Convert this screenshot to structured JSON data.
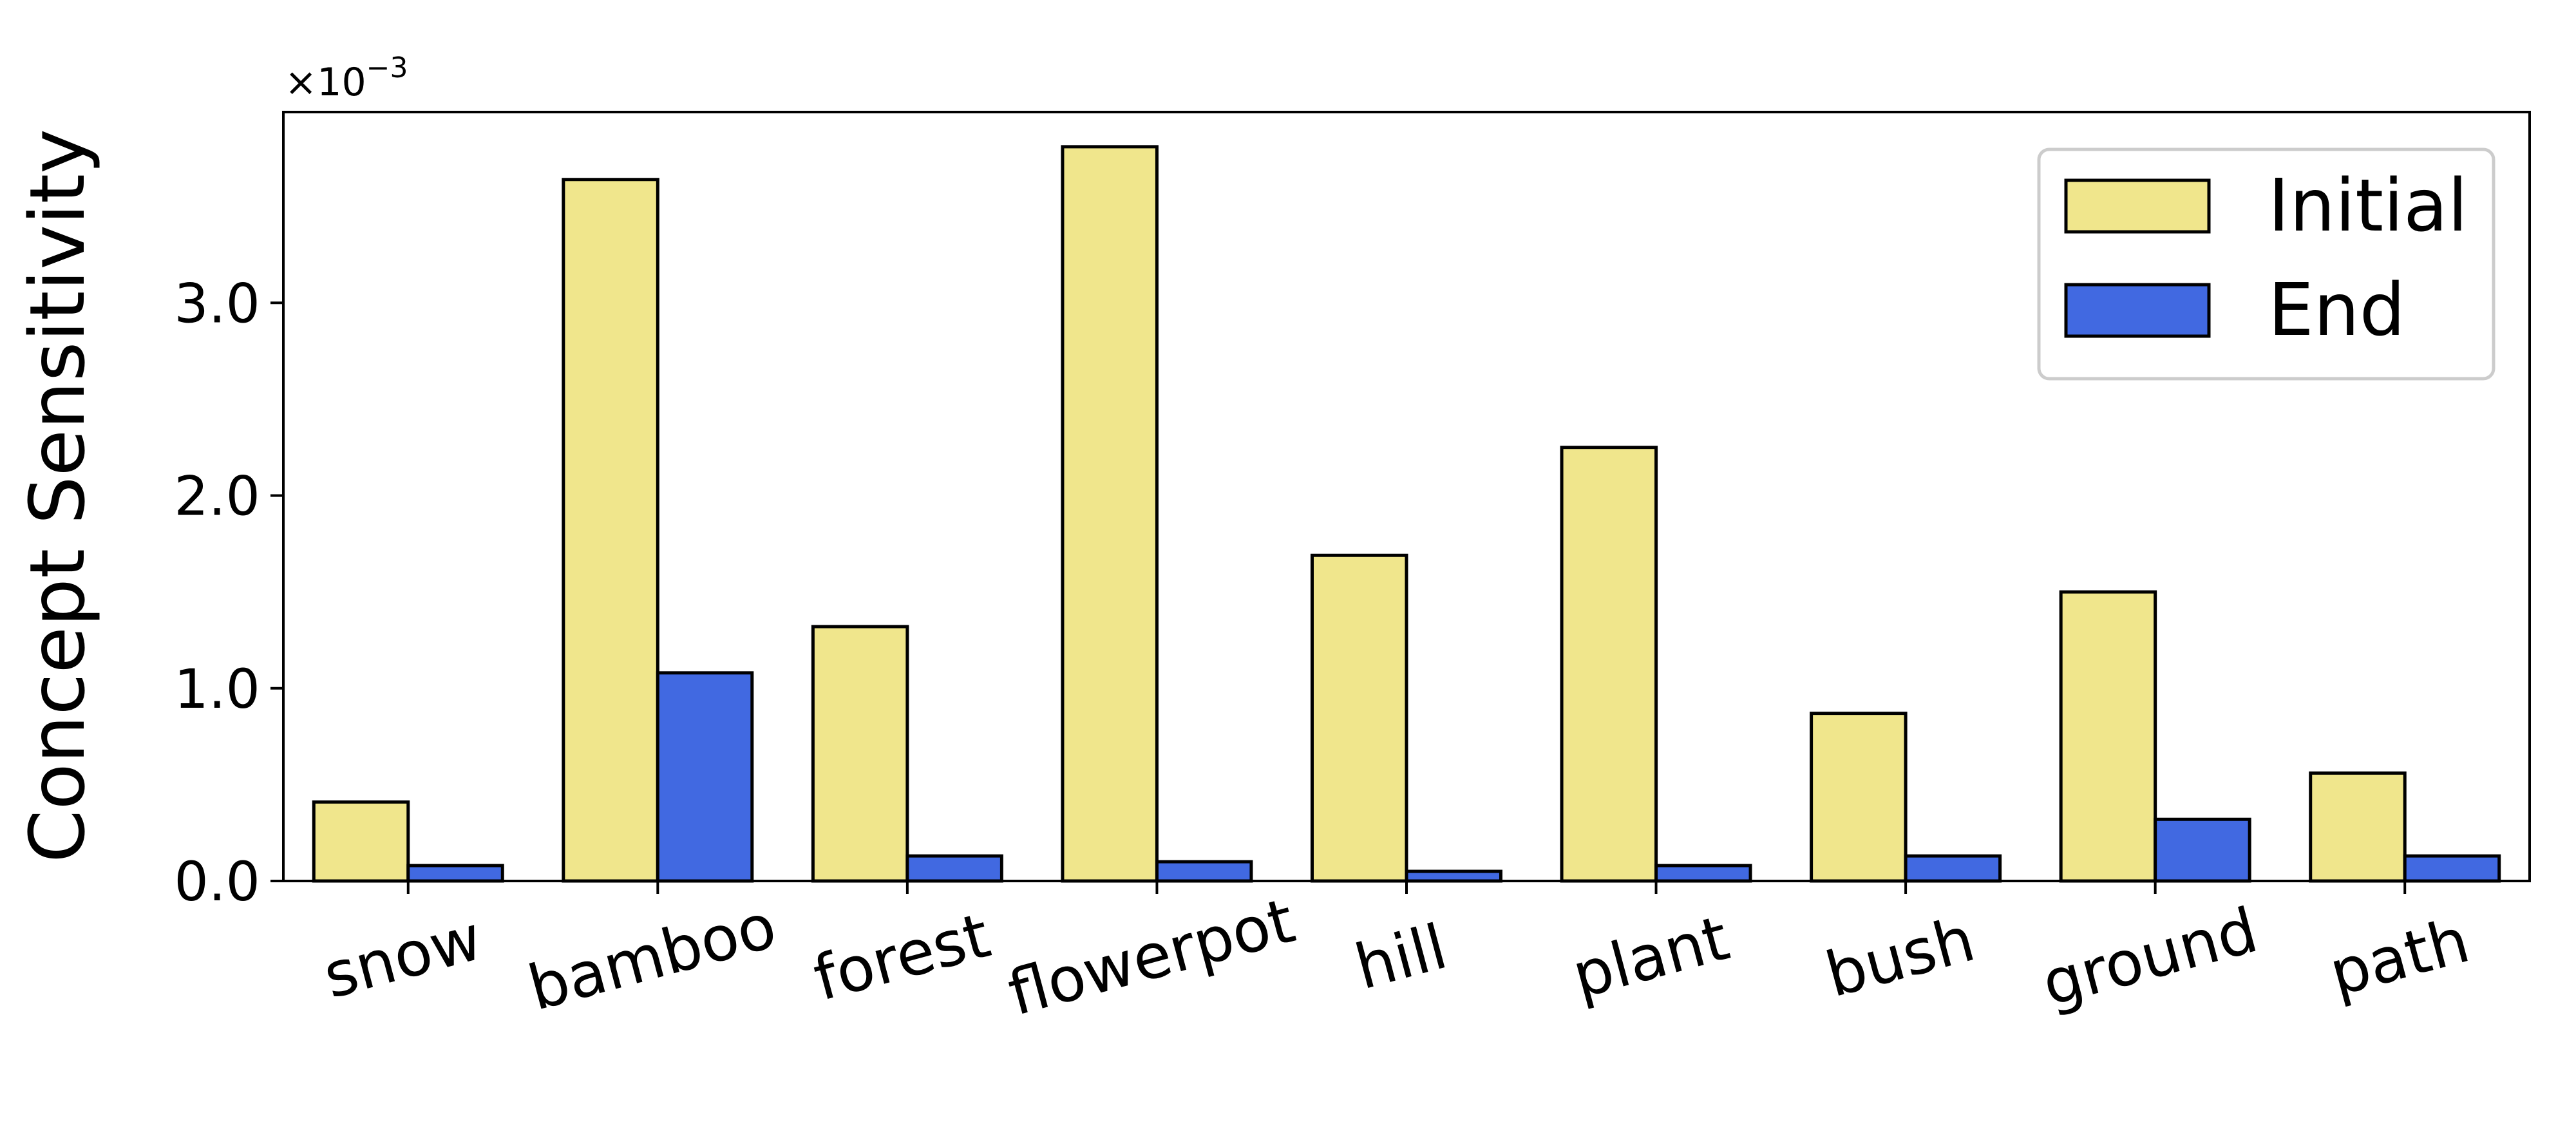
{
  "chart_data": {
    "type": "bar",
    "title": "",
    "xlabel": "",
    "ylabel": "Concept Sensitivity",
    "y_scale_label": "×10",
    "y_scale_exponent": "−3",
    "categories": [
      "snow",
      "bamboo",
      "forest",
      "flowerpot",
      "hill",
      "plant",
      "bush",
      "ground",
      "path"
    ],
    "series": [
      {
        "name": "Initial",
        "color": "#f0e68c",
        "values": [
          0.41,
          3.64,
          1.32,
          3.81,
          1.69,
          2.25,
          0.87,
          1.5,
          0.56
        ]
      },
      {
        "name": "End",
        "color": "#4169e1",
        "values": [
          0.08,
          1.08,
          0.13,
          0.1,
          0.05,
          0.08,
          0.13,
          0.32,
          0.13
        ]
      }
    ],
    "ylim": [
      0,
      3.99
    ],
    "yticks": [
      0.0,
      1.0,
      2.0,
      3.0
    ],
    "ytick_labels": [
      "0.0",
      "1.0",
      "2.0",
      "3.0"
    ],
    "legend_position": "top-right",
    "grid": false
  }
}
